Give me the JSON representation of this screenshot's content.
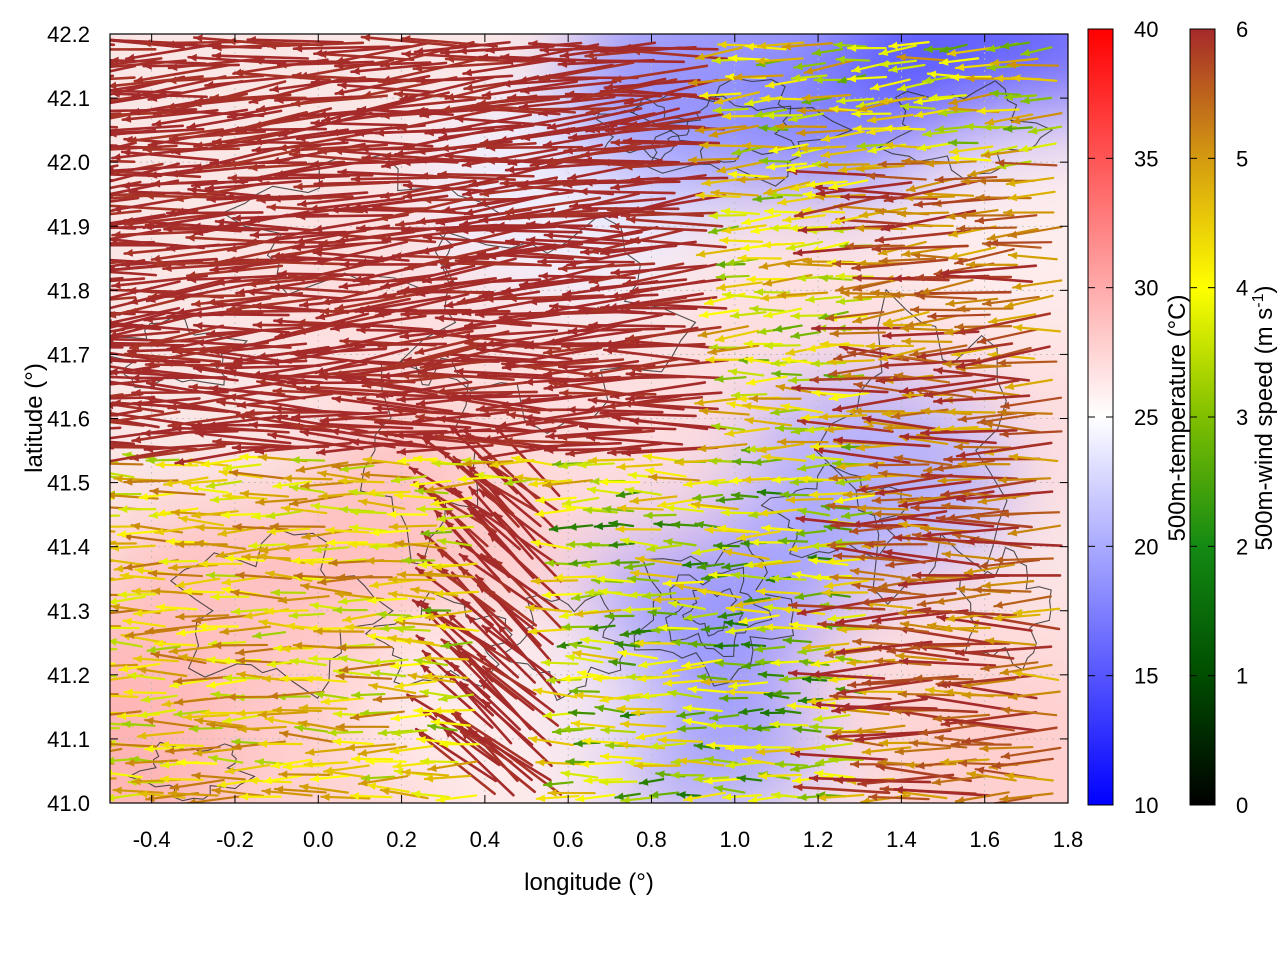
{
  "chart_data": {
    "type": "heatmap",
    "overlays": [
      "wind-vectors",
      "terrain-contours"
    ],
    "xlabel": "longitude (°)",
    "ylabel": "latitude (°)",
    "xlim": [
      -0.5,
      1.8
    ],
    "ylim": [
      41.0,
      42.2
    ],
    "xticks": [
      "-0.4",
      "-0.2",
      "0.0",
      "0.2",
      "0.4",
      "0.6",
      "0.8",
      "1.0",
      "1.2",
      "1.4",
      "1.6",
      "1.8"
    ],
    "xtick_values": [
      -0.4,
      -0.2,
      0.0,
      0.2,
      0.4,
      0.6,
      0.8,
      1.0,
      1.2,
      1.4,
      1.6,
      1.8
    ],
    "yticks": [
      "41.0",
      "41.1",
      "41.2",
      "41.3",
      "41.4",
      "41.5",
      "41.6",
      "41.7",
      "41.8",
      "41.9",
      "42.0",
      "42.1",
      "42.2"
    ],
    "ytick_values": [
      41.0,
      41.1,
      41.2,
      41.3,
      41.4,
      41.5,
      41.6,
      41.7,
      41.8,
      41.9,
      42.0,
      42.1,
      42.2
    ],
    "grid": true,
    "temperature_colorbar": {
      "label": "500m-temperature (°C)",
      "range": [
        10,
        40
      ],
      "ticks": [
        "10",
        "15",
        "20",
        "25",
        "30",
        "35",
        "40"
      ],
      "tick_values": [
        10,
        15,
        20,
        25,
        30,
        35,
        40
      ],
      "colors": [
        "#0000ff",
        "#ffffff",
        "#ff0000"
      ]
    },
    "wind_colorbar": {
      "label_main": "500m-wind speed (m s",
      "label_sup": "-1",
      "label_end": ")",
      "range": [
        0,
        6
      ],
      "ticks": [
        "0",
        "1",
        "2",
        "3",
        "4",
        "5",
        "6"
      ],
      "tick_values": [
        0,
        1,
        2,
        3,
        4,
        5,
        6
      ],
      "colors": [
        "#000000",
        "#006400",
        "#7fbf00",
        "#ffff00",
        "#d4a000",
        "#b8621a",
        "#a52a2a"
      ]
    },
    "temperature_regions": [
      {
        "lon": -0.45,
        "lat": 41.1,
        "temp": 30
      },
      {
        "lon": -0.2,
        "lat": 41.3,
        "temp": 29
      },
      {
        "lon": 0.1,
        "lat": 41.1,
        "temp": 28
      },
      {
        "lon": 0.3,
        "lat": 41.45,
        "temp": 29
      },
      {
        "lon": 0.2,
        "lat": 41.8,
        "temp": 27
      },
      {
        "lon": 0.6,
        "lat": 41.95,
        "temp": 24
      },
      {
        "lon": 0.95,
        "lat": 42.12,
        "temp": 18
      },
      {
        "lon": 1.35,
        "lat": 42.1,
        "temp": 18
      },
      {
        "lon": 1.6,
        "lat": 42.17,
        "temp": 15
      },
      {
        "lon": 1.2,
        "lat": 41.7,
        "temp": 27
      },
      {
        "lon": 1.6,
        "lat": 41.6,
        "temp": 27
      },
      {
        "lon": 1.0,
        "lat": 41.35,
        "temp": 18
      },
      {
        "lon": 0.9,
        "lat": 41.15,
        "temp": 19
      },
      {
        "lon": 1.3,
        "lat": 41.5,
        "temp": 20
      },
      {
        "lon": 1.5,
        "lat": 41.2,
        "temp": 27
      },
      {
        "lon": 1.7,
        "lat": 41.05,
        "temp": 28
      },
      {
        "lon": 0.45,
        "lat": 41.15,
        "temp": 26
      },
      {
        "lon": 0.7,
        "lat": 41.55,
        "temp": 27
      },
      {
        "lon": 1.7,
        "lat": 41.9,
        "temp": 26
      }
    ],
    "wind_regime": [
      {
        "region": "northwest and central band",
        "lat_range": [
          41.55,
          42.2
        ],
        "lon_range": [
          -0.5,
          1.0
        ],
        "direction": "westward",
        "speed": 6
      },
      {
        "region": "southwest",
        "lat_range": [
          41.0,
          41.55
        ],
        "lon_range": [
          -0.5,
          0.3
        ],
        "direction": "westward",
        "speed": 3.5
      },
      {
        "region": "center south",
        "lat_range": [
          41.0,
          41.5
        ],
        "lon_range": [
          0.4,
          0.6
        ],
        "direction": "northwestward",
        "speed": 6
      },
      {
        "region": "southeast",
        "lat_range": [
          41.0,
          41.5
        ],
        "lon_range": [
          0.6,
          1.35
        ],
        "direction": "westward",
        "speed": 2.5
      },
      {
        "region": "east",
        "lat_range": [
          41.0,
          42.0
        ],
        "lon_range": [
          1.35,
          1.8
        ],
        "direction": "westward",
        "speed": 5
      }
    ]
  }
}
